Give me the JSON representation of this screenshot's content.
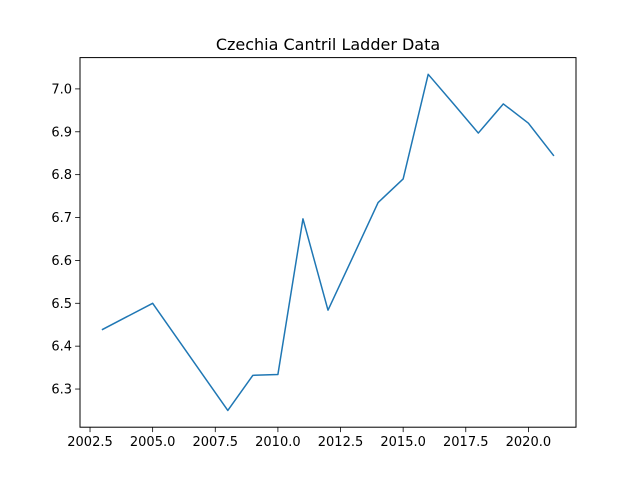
{
  "chart_data": {
    "type": "line",
    "title": "Czechia Cantril Ladder Data",
    "xlabel": "",
    "ylabel": "",
    "xlim": [
      2002.1,
      2021.9
    ],
    "ylim": [
      6.211,
      7.073
    ],
    "x_ticks": [
      2002.5,
      2005.0,
      2007.5,
      2010.0,
      2012.5,
      2015.0,
      2017.5,
      2020.0
    ],
    "x_tick_labels": [
      "2002.5",
      "2005.0",
      "2007.5",
      "2010.0",
      "2012.5",
      "2015.0",
      "2017.5",
      "2020.0"
    ],
    "y_ticks": [
      6.3,
      6.4,
      6.5,
      6.6,
      6.7,
      6.8,
      6.9,
      7.0
    ],
    "y_tick_labels": [
      "6.3",
      "6.4",
      "6.5",
      "6.6",
      "6.7",
      "6.8",
      "6.9",
      "7.0"
    ],
    "grid": false,
    "series": [
      {
        "color": "#1f77b4",
        "x": [
          2003,
          2005,
          2008,
          2009,
          2010,
          2011,
          2012,
          2013,
          2014,
          2015,
          2016,
          2017,
          2018,
          2019,
          2020,
          2021
        ],
        "y": [
          6.439,
          6.5,
          6.25,
          6.332,
          6.334,
          6.697,
          6.484,
          6.609,
          6.735,
          6.79,
          7.034,
          6.966,
          6.897,
          6.965,
          6.92,
          6.845
        ]
      }
    ]
  }
}
